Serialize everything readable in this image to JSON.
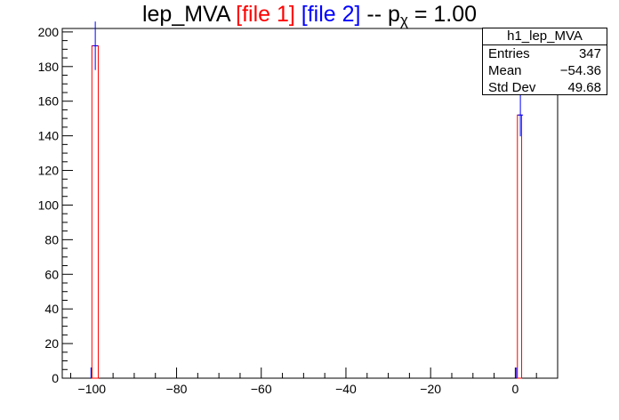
{
  "title": {
    "prefix": "lep_MVA ",
    "file1": "[file 1]",
    "file2": "[file 2]",
    "middle": " -- p",
    "subscript": "χ",
    "suffix": " = 1.00"
  },
  "stats_box": {
    "name": "h1_lep_MVA",
    "rows": [
      {
        "label": "Entries",
        "value": "347"
      },
      {
        "label": "Mean",
        "value": "−54.36"
      },
      {
        "label": "Std Dev",
        "value": "49.68"
      }
    ]
  },
  "colors": {
    "file1": "#ff0000",
    "file2": "#0000ff",
    "axis": "#000000"
  },
  "chart_data": {
    "type": "bar",
    "xlim": [
      -107,
      10
    ],
    "ylim": [
      0,
      202
    ],
    "xticks": [
      -100,
      -80,
      -60,
      -40,
      -20,
      0
    ],
    "xtick_labels": [
      "−100",
      "−80",
      "−60",
      "−40",
      "−20",
      "0"
    ],
    "yticks": [
      0,
      20,
      40,
      60,
      80,
      100,
      120,
      140,
      160,
      180,
      200
    ],
    "ytick_labels": [
      "0",
      "20",
      "40",
      "60",
      "80",
      "100",
      "120",
      "140",
      "160",
      "180",
      "200"
    ],
    "series": [
      {
        "name": "[file 1]",
        "bins": [
          {
            "x0": -100,
            "x1": -98.5,
            "y": 192
          },
          {
            "x0": 0.5,
            "x1": 1.5,
            "y": 152
          }
        ]
      },
      {
        "name": "[file 2]",
        "points": [
          {
            "x": -99.2,
            "y": 192,
            "err": 14
          },
          {
            "x": 1.2,
            "y": 152,
            "err": 12.3
          }
        ]
      }
    ],
    "grid": false,
    "legend": "top-right"
  }
}
